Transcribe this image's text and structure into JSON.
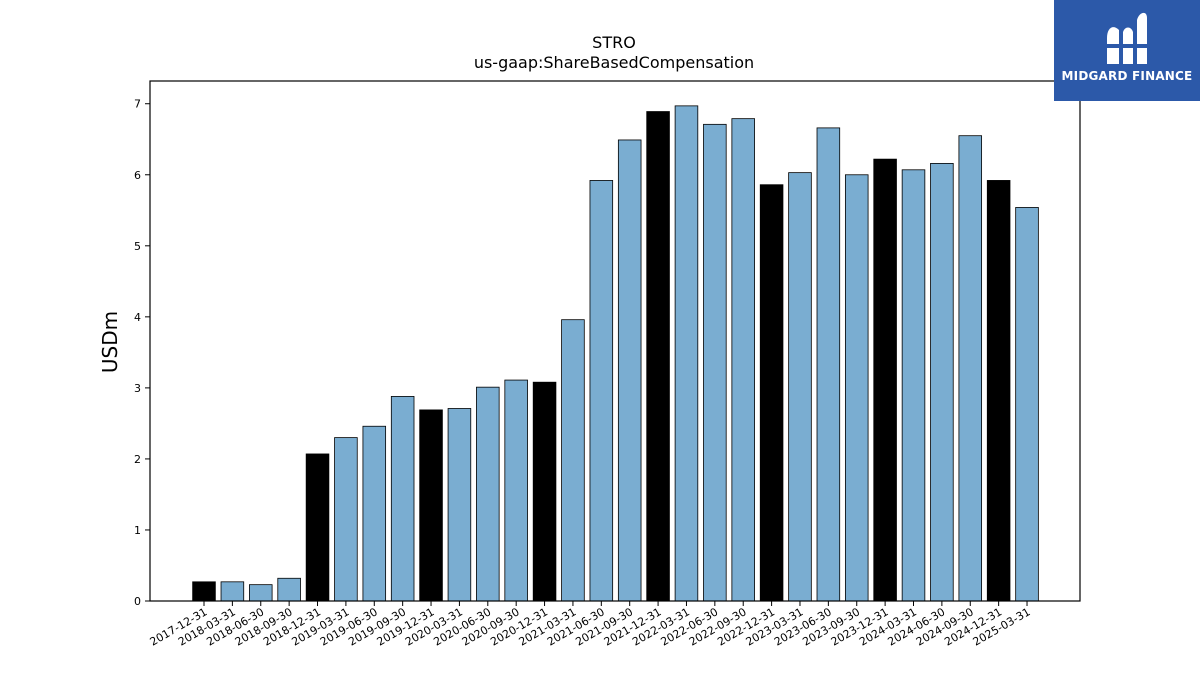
{
  "chart_data": {
    "type": "bar",
    "title": "STRO",
    "subtitle": "us-gaap:ShareBasedCompensation",
    "ylabel": "USDm",
    "xlabel": "",
    "ylim": [
      0,
      7.32
    ],
    "yticks": [
      "0",
      "1",
      "2",
      "3",
      "4",
      "5",
      "6",
      "7"
    ],
    "grid": false,
    "colors": {
      "annual": "#000000",
      "quarterly": "#7aadd1",
      "edge": "#000000"
    },
    "categories": [
      "2017-12-31",
      "2018-03-31",
      "2018-06-30",
      "2018-09-30",
      "2018-12-31",
      "2019-03-31",
      "2019-06-30",
      "2019-09-30",
      "2019-12-31",
      "2020-03-31",
      "2020-06-30",
      "2020-09-30",
      "2020-12-31",
      "2021-03-31",
      "2021-06-30",
      "2021-09-30",
      "2021-12-31",
      "2022-03-31",
      "2022-06-30",
      "2022-09-30",
      "2022-12-31",
      "2023-03-31",
      "2023-06-30",
      "2023-09-30",
      "2023-12-31",
      "2024-03-31",
      "2024-06-30",
      "2024-09-30",
      "2024-12-31",
      "2025-03-31"
    ],
    "values": [
      0.27,
      0.27,
      0.23,
      0.32,
      2.07,
      2.3,
      2.46,
      2.88,
      2.69,
      2.71,
      3.01,
      3.11,
      3.08,
      3.96,
      5.92,
      6.49,
      6.89,
      6.97,
      6.71,
      6.79,
      5.86,
      6.03,
      6.66,
      6.0,
      6.22,
      6.07,
      6.16,
      6.55,
      5.92,
      5.54
    ],
    "annual": [
      true,
      false,
      false,
      false,
      true,
      false,
      false,
      false,
      true,
      false,
      false,
      false,
      true,
      false,
      false,
      false,
      true,
      false,
      false,
      false,
      true,
      false,
      false,
      false,
      true,
      false,
      false,
      false,
      true,
      false
    ]
  },
  "logo": {
    "text": "MIDGARD FINANCE",
    "icon": "midgard-logo-icon",
    "color": "#2c59a9"
  }
}
